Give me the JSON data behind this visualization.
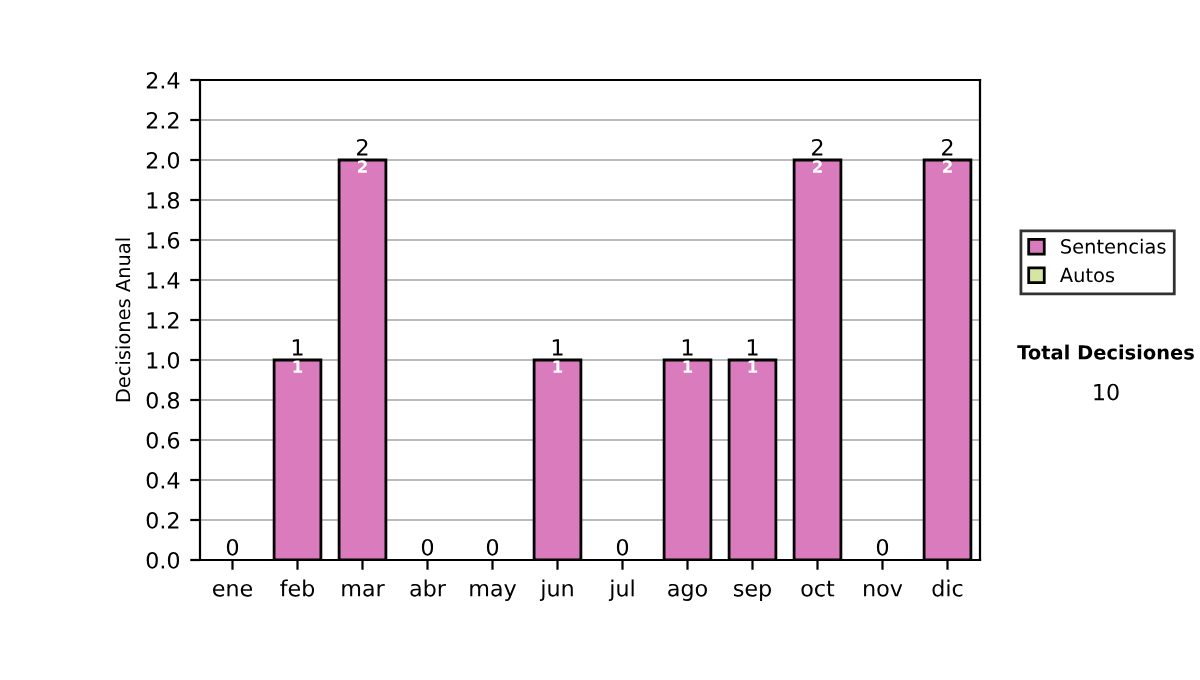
{
  "chart_data": {
    "type": "bar",
    "stacked": true,
    "ylabel": "Decisiones Anual",
    "categories": [
      "ene",
      "feb",
      "mar",
      "abr",
      "may",
      "jun",
      "jul",
      "ago",
      "sep",
      "oct",
      "nov",
      "dic"
    ],
    "series": [
      {
        "name": "Sentencias",
        "color": "#d97bbd",
        "values": [
          0,
          1,
          2,
          0,
          0,
          1,
          0,
          1,
          1,
          2,
          0,
          2
        ],
        "value_labels": [
          null,
          "1",
          "2",
          null,
          null,
          "1",
          null,
          "1",
          "1",
          "2",
          null,
          "2"
        ]
      },
      {
        "name": "Autos",
        "color": "#d4e6a0",
        "values": [
          0,
          0,
          0,
          0,
          0,
          0,
          0,
          0,
          0,
          0,
          0,
          0
        ]
      }
    ],
    "totals": [
      "0",
      "1",
      "2",
      "0",
      "0",
      "1",
      "0",
      "1",
      "1",
      "2",
      "0",
      "2"
    ],
    "ylim": [
      0,
      2.4
    ],
    "yticks": [
      "0.0",
      "0.2",
      "0.4",
      "0.6",
      "0.8",
      "1.0",
      "1.2",
      "1.4",
      "1.6",
      "1.8",
      "2.0",
      "2.2",
      "2.4"
    ],
    "grid": "y",
    "legend": "right",
    "annotations": [
      "Total Decisiones",
      "10"
    ]
  }
}
